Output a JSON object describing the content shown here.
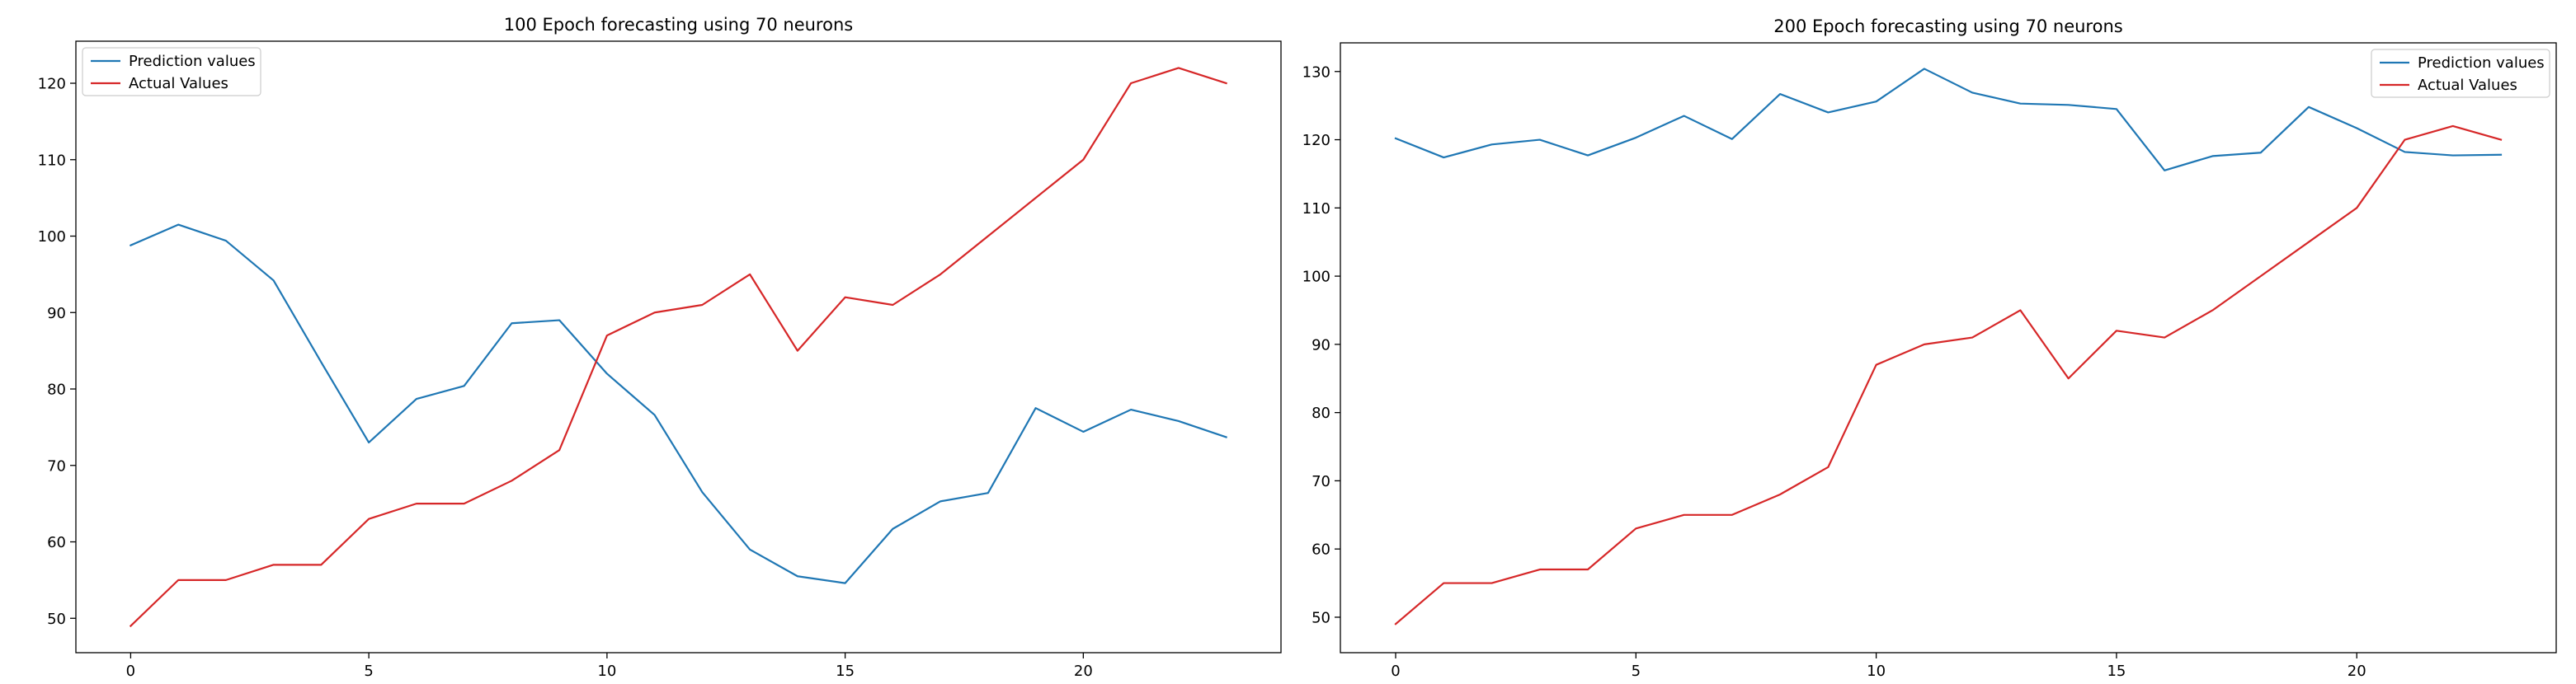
{
  "chart_data": [
    {
      "type": "line",
      "title": "100 Epoch forecasting using 70 neurons",
      "xlabel": "",
      "ylabel": "",
      "x": [
        0,
        1,
        2,
        3,
        4,
        5,
        6,
        7,
        8,
        9,
        10,
        11,
        12,
        13,
        14,
        15,
        16,
        17,
        18,
        19,
        20,
        21,
        22,
        23
      ],
      "xlim": [
        -1.15,
        24.15
      ],
      "ylim": [
        45.5,
        125.5
      ],
      "xticks": [
        0,
        5,
        10,
        15,
        20
      ],
      "yticks": [
        50,
        60,
        70,
        80,
        90,
        100,
        110,
        120
      ],
      "grid": false,
      "legend": "top-left",
      "series": [
        {
          "name": "Prediction values",
          "color": "#1f77b4",
          "values": [
            98.8,
            101.5,
            99.4,
            94.2,
            83.5,
            73.0,
            78.7,
            80.4,
            88.6,
            89.0,
            82.0,
            76.6,
            66.5,
            59.0,
            55.5,
            54.6,
            61.7,
            65.3,
            66.4,
            77.5,
            74.4,
            77.3,
            75.8,
            73.7
          ]
        },
        {
          "name": "Actual Values",
          "color": "#d62728",
          "values": [
            49,
            55,
            55,
            57,
            57,
            63,
            65,
            65,
            68,
            72,
            87,
            90,
            91,
            95,
            85,
            92,
            91,
            95,
            100,
            105,
            110,
            120,
            122,
            120
          ]
        }
      ]
    },
    {
      "type": "line",
      "title": "200 Epoch forecasting using 70 neurons",
      "xlabel": "",
      "ylabel": "",
      "x": [
        0,
        1,
        2,
        3,
        4,
        5,
        6,
        7,
        8,
        9,
        10,
        11,
        12,
        13,
        14,
        15,
        16,
        17,
        18,
        19,
        20,
        21,
        22,
        23
      ],
      "xlim": [
        -1.15,
        24.15
      ],
      "ylim": [
        44.8,
        134.2
      ],
      "xticks": [
        0,
        5,
        10,
        15,
        20
      ],
      "yticks": [
        50,
        60,
        70,
        80,
        90,
        100,
        110,
        120,
        130
      ],
      "grid": false,
      "legend": "top-right",
      "series": [
        {
          "name": "Prediction values",
          "color": "#1f77b4",
          "values": [
            120.2,
            117.4,
            119.3,
            120.0,
            117.7,
            120.3,
            123.5,
            120.1,
            126.7,
            124.0,
            125.6,
            130.4,
            126.9,
            125.3,
            125.1,
            124.5,
            115.5,
            117.6,
            118.1,
            124.8,
            121.7,
            118.2,
            117.7,
            117.8
          ]
        },
        {
          "name": "Actual Values",
          "color": "#d62728",
          "values": [
            49,
            55,
            55,
            57,
            57,
            63,
            65,
            65,
            68,
            72,
            87,
            90,
            91,
            95,
            85,
            92,
            91,
            95,
            100,
            105,
            110,
            120,
            122,
            120
          ]
        }
      ]
    }
  ]
}
